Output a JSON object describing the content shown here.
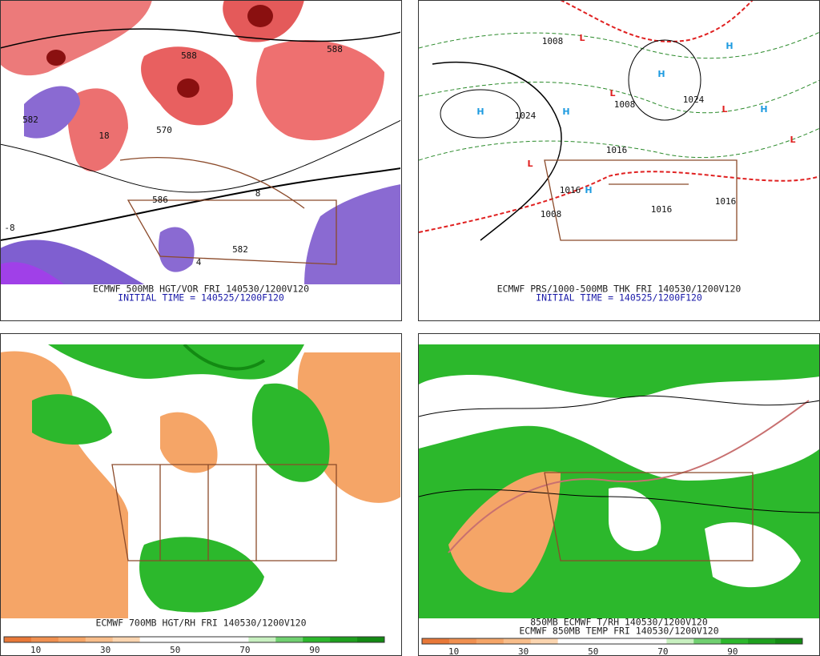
{
  "panels": [
    {
      "caption": "ECMWF 500MB HGT/VOR FRI 140530/1200V120",
      "subcaption": "INITIAL TIME = 140525/1200F120",
      "map_labels": [
        "582",
        "588",
        "588",
        "18",
        "570",
        "586",
        "582",
        "-8",
        "4",
        "8"
      ]
    },
    {
      "caption": "ECMWF PRS/1000-500MB THK FRI 140530/1200V120",
      "subcaption": "INITIAL TIME = 140525/1200F120",
      "map_labels": [
        "H",
        "H",
        "H",
        "H",
        "H",
        "H",
        "L",
        "L",
        "L",
        "L",
        "L",
        "1024",
        "1024",
        "1008",
        "1008",
        "1016",
        "1016",
        "1016",
        "1016",
        "1008"
      ]
    },
    {
      "caption": "ECMWF 700MB HGT/RH FRI 140530/1200V120",
      "colorbar_ticks": [
        "10",
        "30",
        "50",
        "70",
        "90"
      ]
    },
    {
      "caption": "850MB ECMWF T/RH 140530/1200V120",
      "subcaption": "ECMWF 850MB TEMP FRI 140530/1200V120",
      "colorbar_ticks": [
        "10",
        "30",
        "50",
        "70",
        "90"
      ]
    }
  ]
}
